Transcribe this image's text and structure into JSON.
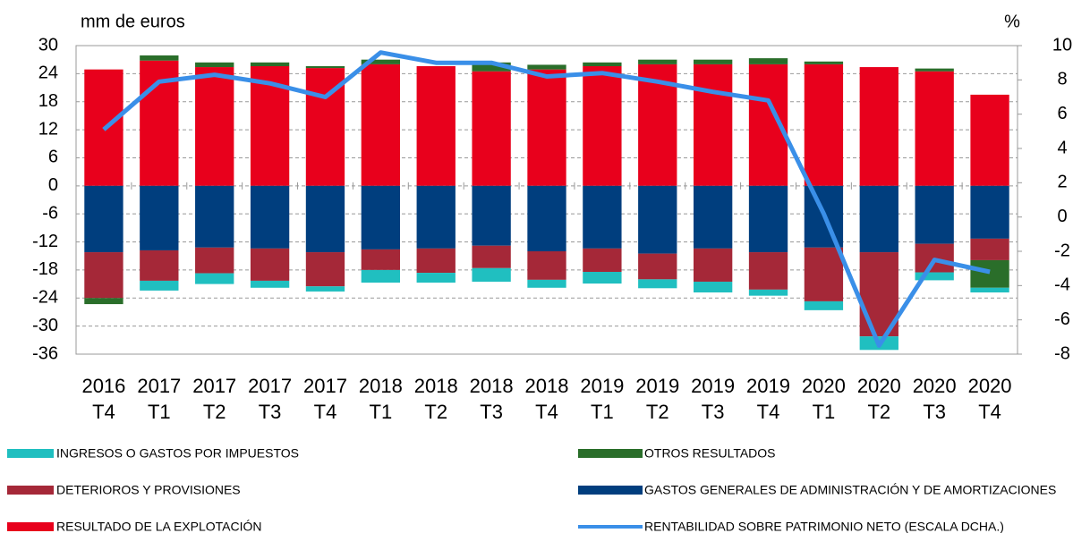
{
  "chart_data": {
    "type": "bar",
    "y_label": "mm de euros",
    "y2_label": "%",
    "categories": [
      [
        "2016",
        "T4"
      ],
      [
        "2017",
        "T1"
      ],
      [
        "2017",
        "T2"
      ],
      [
        "2017",
        "T3"
      ],
      [
        "2017",
        "T4"
      ],
      [
        "2018",
        "T1"
      ],
      [
        "2018",
        "T2"
      ],
      [
        "2018",
        "T3"
      ],
      [
        "2018",
        "T4"
      ],
      [
        "2019",
        "T1"
      ],
      [
        "2019",
        "T2"
      ],
      [
        "2019",
        "T3"
      ],
      [
        "2019",
        "T4"
      ],
      [
        "2020",
        "T1"
      ],
      [
        "2020",
        "T2"
      ],
      [
        "2020",
        "T3"
      ],
      [
        "2020",
        "T4"
      ]
    ],
    "ylim": [
      -36,
      30
    ],
    "yticks": [
      -36,
      -30,
      -24,
      -18,
      -12,
      -6,
      0,
      6,
      12,
      18,
      24,
      30
    ],
    "y2lim": [
      -8,
      10
    ],
    "y2ticks": [
      -8,
      -6,
      -4,
      -2,
      0,
      2,
      4,
      6,
      8,
      10
    ],
    "grid": true,
    "stacked": true,
    "series": [
      {
        "name": "INGRESOS O GASTOS POR IMPUESTOS",
        "type": "bar",
        "color": "#20bfc0",
        "values": [
          0,
          -2.1,
          -2.3,
          -1.5,
          -1.1,
          -2.7,
          -2.1,
          -2.9,
          -1.7,
          -2.5,
          -1.9,
          -2.3,
          -1.3,
          -1.9,
          -2.9,
          -1.7,
          -1.0
        ]
      },
      {
        "name": "OTROS RESULTADOS",
        "type": "bar",
        "color": "#2a6e2a",
        "values": [
          -1.3,
          1.1,
          1.0,
          0.8,
          0.4,
          1.0,
          0,
          1.9,
          1.0,
          0.8,
          1.0,
          1.0,
          1.3,
          0.6,
          0,
          0.6,
          -5.9
        ]
      },
      {
        "name": "DETERIOROS Y PROVISIONES",
        "type": "bar",
        "color": "#a52838",
        "values": [
          -9.8,
          -6.5,
          -5.5,
          -6.9,
          -7.3,
          -4.4,
          -5.2,
          -4.8,
          -6.1,
          -5.0,
          -5.5,
          -7.1,
          -8.0,
          -11.5,
          -18.0,
          -6.1,
          -4.6
        ]
      },
      {
        "name": "GASTOS GENERALES DE ADMINISTRACIÓN Y DE AMORTIZACIONES",
        "type": "bar",
        "color": "#003e7e",
        "values": [
          -14.2,
          -13.8,
          -13.2,
          -13.4,
          -14.2,
          -13.6,
          -13.4,
          -12.8,
          -14.0,
          -13.4,
          -14.5,
          -13.4,
          -14.2,
          -13.2,
          -14.2,
          -12.4,
          -11.3
        ]
      },
      {
        "name": "RESULTADO DE LA EXPLOTACIÓN",
        "type": "bar",
        "color": "#e8001c",
        "values": [
          24.9,
          26.8,
          25.4,
          25.6,
          25.2,
          26.0,
          25.6,
          24.5,
          24.9,
          25.6,
          26.0,
          26.0,
          26.0,
          26.0,
          25.4,
          24.5,
          19.5
        ]
      },
      {
        "name": "RENTABILIDAD SOBRE PATRIMONIO NETO  (ESCALA DCHA.)",
        "type": "line",
        "axis": "y2",
        "color": "#3a8fe8",
        "values": [
          5.1,
          7.9,
          8.3,
          7.8,
          7.0,
          9.6,
          9.0,
          9.0,
          8.2,
          8.4,
          7.9,
          7.3,
          6.8,
          0.2,
          -7.5,
          -2.5,
          -3.2
        ]
      }
    ]
  }
}
